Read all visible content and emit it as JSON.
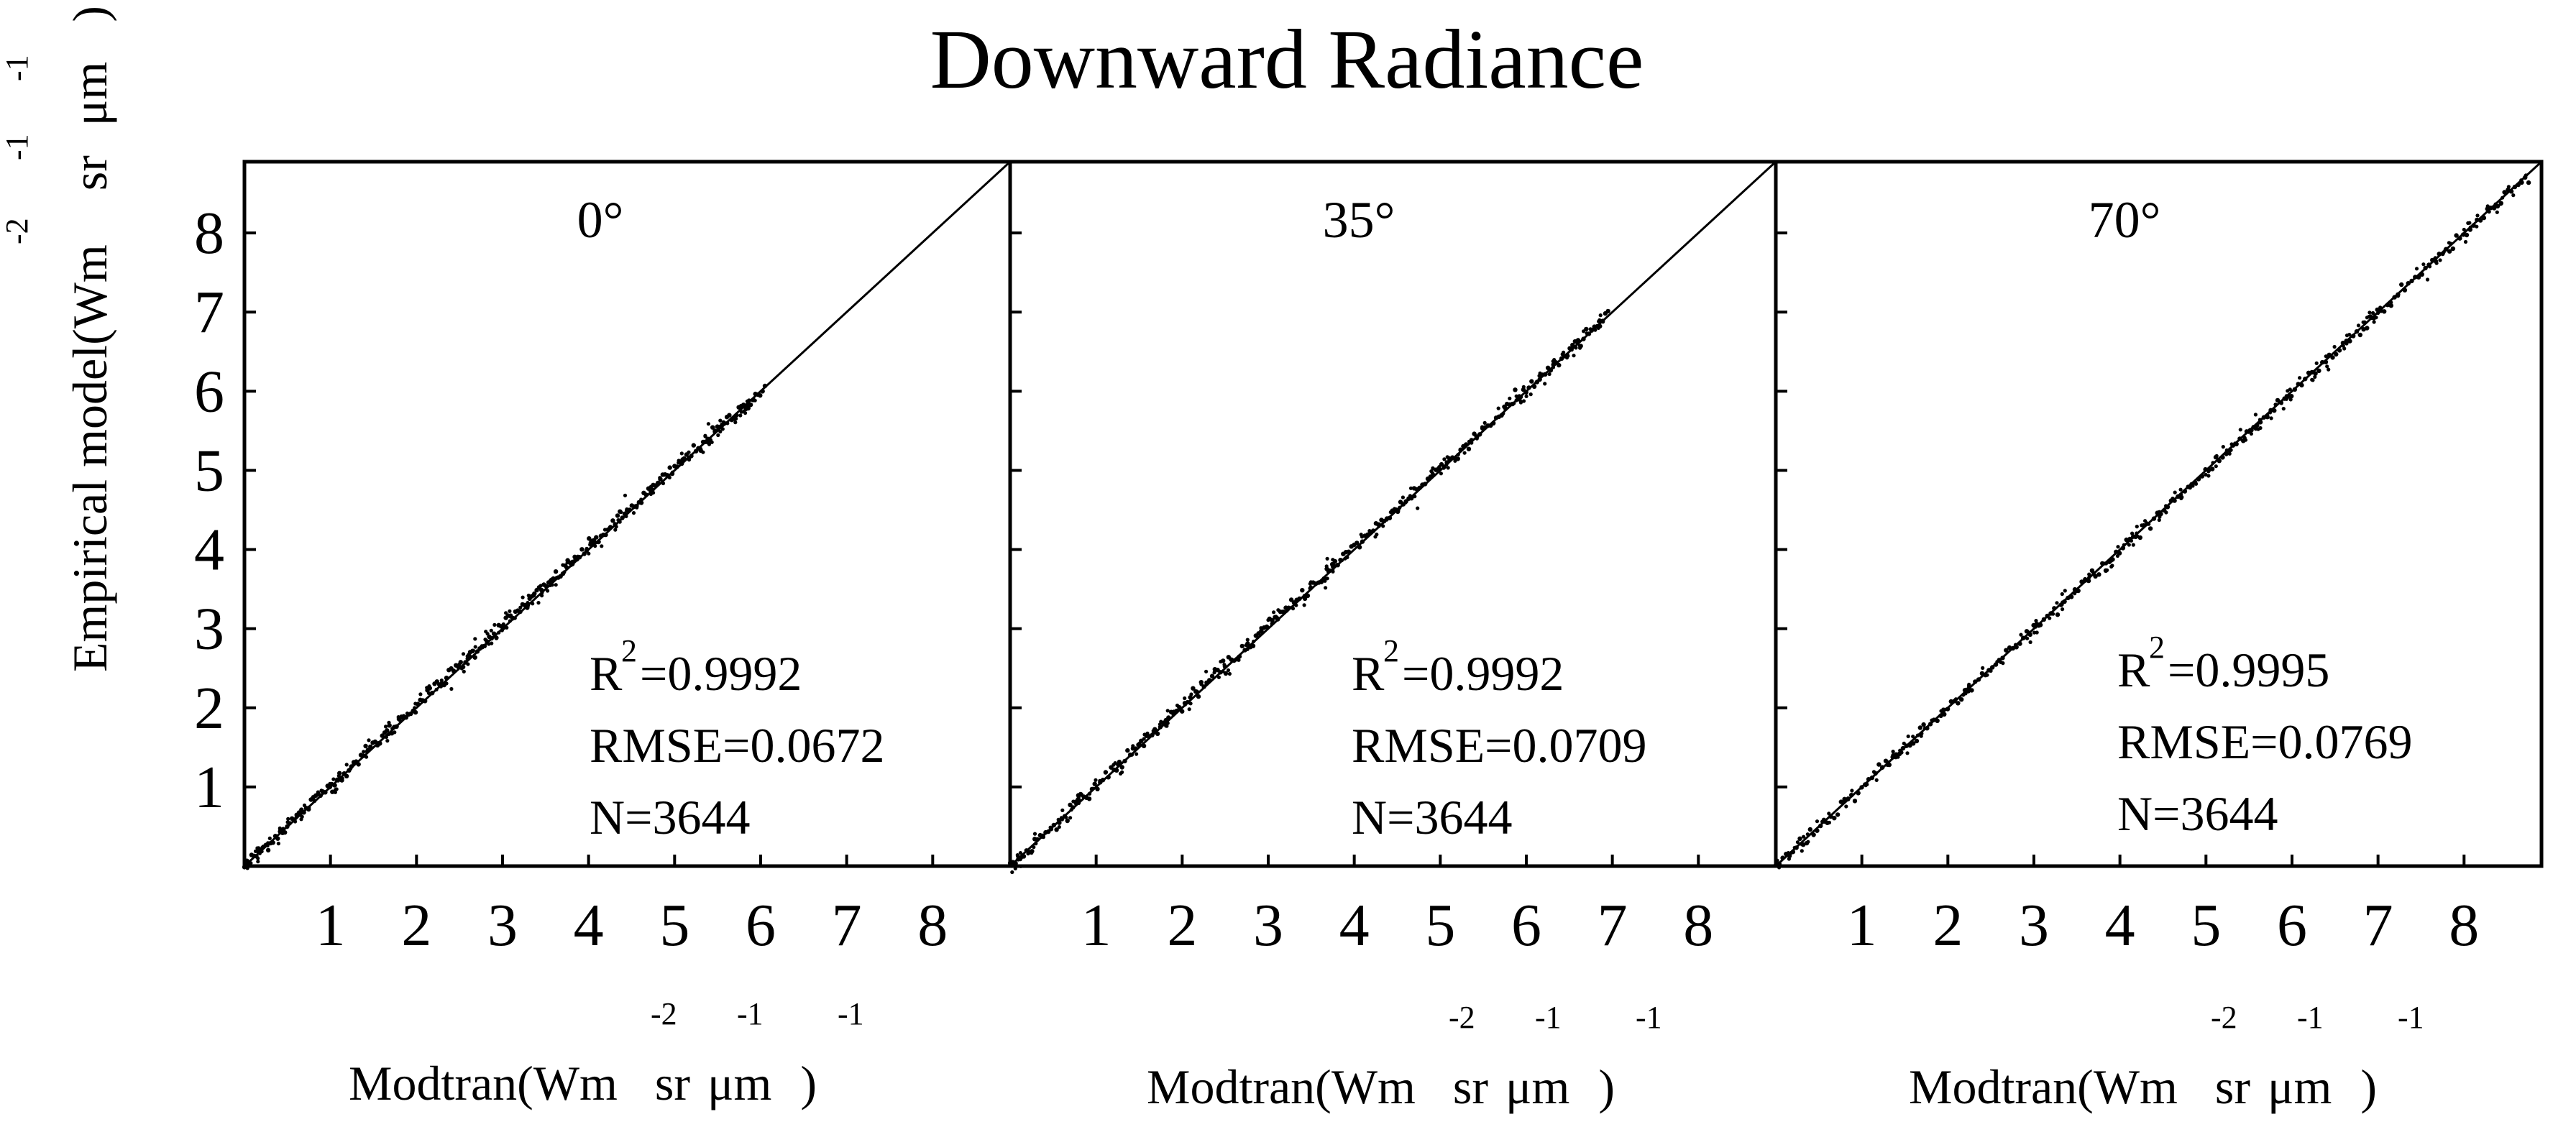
{
  "chart_data": {
    "type": "scatter",
    "title": "Downward Radiance",
    "ylabel": {
      "main": "Empirical model(Wm",
      "sr": "sr",
      "um": "μm",
      "close": ")",
      "sup_m2": "-2",
      "sup_sr": "-1",
      "sup_um": "-1"
    },
    "xlabel": {
      "main": "Modtran(Wm",
      "sr": "sr",
      "um": "μm",
      "close": ")",
      "sup_m2": "-2",
      "sup_sr": "-1",
      "sup_um": "-1"
    },
    "xlim": [
      0,
      8.9
    ],
    "ylim": [
      0,
      8.9
    ],
    "x_ticks": [
      "1",
      "2",
      "3",
      "4",
      "5",
      "6",
      "7",
      "8"
    ],
    "y_ticks": [
      "1",
      "2",
      "3",
      "4",
      "5",
      "6",
      "7",
      "8"
    ],
    "reference_line": "1:1",
    "panels": [
      {
        "label": "0°",
        "r2_prefix": "R",
        "r2_sup": "2",
        "r2_value": "=0.9992",
        "rmse": "RMSE=0.0672",
        "n": "N=3644",
        "data_range": [
          0,
          6.05
        ],
        "bias_slope": 0.025
      },
      {
        "label": "35°",
        "r2_prefix": "R",
        "r2_sup": "2",
        "r2_value": "=0.9992",
        "rmse": "RMSE=0.0709",
        "n": "N=3644",
        "data_range": [
          0,
          6.95
        ],
        "bias_slope": 0.018
      },
      {
        "label": "70°",
        "r2_prefix": "R",
        "r2_sup": "2",
        "r2_value": "=0.9995",
        "rmse": "RMSE=0.0769",
        "n": "N=3644",
        "data_range": [
          0,
          8.75
        ],
        "bias_slope": -0.008
      }
    ]
  }
}
